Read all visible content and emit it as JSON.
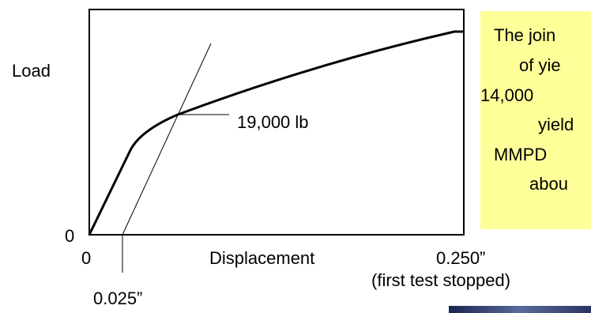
{
  "graph": {
    "y_label": "Load",
    "y_origin": "0",
    "x_origin": "0",
    "x_label": "Displacement",
    "x_end": "0.250”",
    "x_end_note": "(first test stopped)",
    "offset": "0.025”",
    "yield_load": "19,000 lb"
  },
  "note": {
    "lines": [
      "The join",
      "of yie",
      "14,000",
      "yield",
      "MMPD",
      "abou"
    ]
  }
}
